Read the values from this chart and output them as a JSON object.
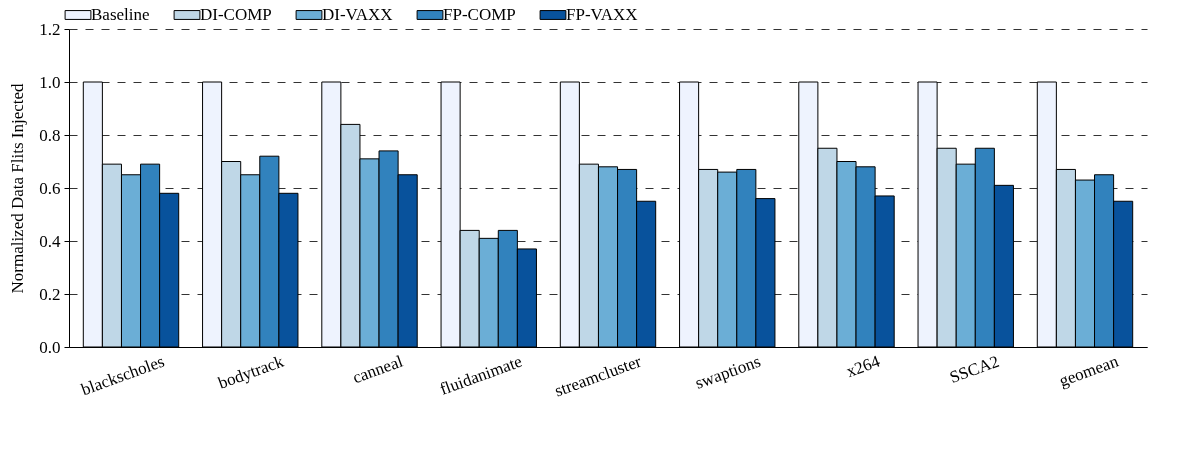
{
  "chart_data": {
    "type": "bar",
    "ylabel": "Normalized Data Flits Injected",
    "categories": [
      "blackscholes",
      "bodytrack",
      "canneal",
      "fluidanimate",
      "streamcluster",
      "swaptions",
      "x264",
      "SSCA2",
      "geomean"
    ],
    "series": [
      {
        "name": "Baseline",
        "color": "#eef3fe",
        "values": [
          1.0,
          1.0,
          1.0,
          1.0,
          1.0,
          1.0,
          1.0,
          1.0,
          1.0
        ]
      },
      {
        "name": "DI-COMP",
        "color": "#bfd7e7",
        "values": [
          0.69,
          0.7,
          0.84,
          0.44,
          0.69,
          0.67,
          0.75,
          0.75,
          0.67
        ]
      },
      {
        "name": "DI-VAXX",
        "color": "#6baed6",
        "values": [
          0.65,
          0.65,
          0.71,
          0.41,
          0.68,
          0.66,
          0.7,
          0.69,
          0.63
        ]
      },
      {
        "name": "FP-COMP",
        "color": "#3182bd",
        "values": [
          0.69,
          0.72,
          0.74,
          0.44,
          0.67,
          0.67,
          0.68,
          0.75,
          0.65
        ]
      },
      {
        "name": "FP-VAXX",
        "color": "#08529c",
        "values": [
          0.58,
          0.58,
          0.65,
          0.37,
          0.55,
          0.56,
          0.57,
          0.61,
          0.55
        ]
      }
    ],
    "ylim": [
      0,
      1.2
    ],
    "yticks": [
      {
        "value": 0,
        "label": "0.0"
      },
      0.2,
      0.4,
      0.6,
      0.8,
      {
        "value": 1,
        "label": "1.0"
      },
      1.2
    ],
    "grid": "y",
    "legend": "top"
  }
}
